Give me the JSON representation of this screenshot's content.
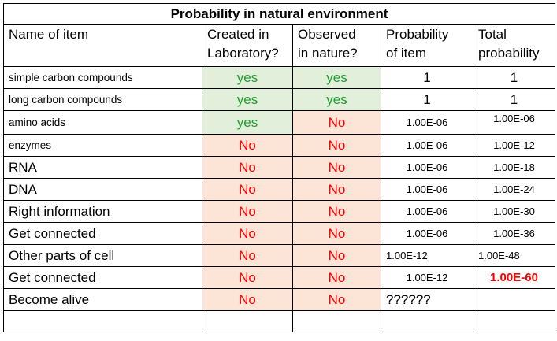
{
  "title": "Probability in natural environment",
  "headers": {
    "name": "Name of item",
    "created_line1": "Created in",
    "created_line2": "Laboratory?",
    "observed_line1": "Observed",
    "observed_line2": "in nature?",
    "prob_line1": "Probability",
    "prob_line2": "of item",
    "total_line1": "Total",
    "total_line2": "probability"
  },
  "rows": [
    {
      "name": "simple carbon compounds",
      "created": "yes",
      "observed": "yes",
      "prob": "1",
      "total": "1"
    },
    {
      "name": "long carbon compounds",
      "created": "yes",
      "observed": "yes",
      "prob": "1",
      "total": "1"
    },
    {
      "name": "amino acids",
      "created": "yes",
      "observed": "No",
      "prob": "1.00E-06",
      "total": "1.00E-06"
    },
    {
      "name": "enzymes",
      "created": "No",
      "observed": "No",
      "prob": "1.00E-06",
      "total": "1.00E-12"
    },
    {
      "name": "RNA",
      "created": "No",
      "observed": "No",
      "prob": "1.00E-06",
      "total": "1.00E-18"
    },
    {
      "name": "DNA",
      "created": "No",
      "observed": "No",
      "prob": "1.00E-06",
      "total": "1.00E-24"
    },
    {
      "name": "Right information",
      "created": "No",
      "observed": "No",
      "prob": "1.00E-06",
      "total": "1.00E-30"
    },
    {
      "name": "Get connected",
      "created": "No",
      "observed": "No",
      "prob": "1.00E-06",
      "total": "1.00E-36"
    },
    {
      "name": "Other parts of cell",
      "created": "No",
      "observed": "No",
      "prob": "1.00E-12",
      "total": "1.00E-48"
    },
    {
      "name": "Get connected",
      "created": "No",
      "observed": "No",
      "prob": "1.00E-12",
      "total": "1.00E-60"
    },
    {
      "name": "Become alive",
      "created": "No",
      "observed": "No",
      "prob": "??????",
      "total": ""
    }
  ],
  "colors": {
    "yes_fill": "#e2efda",
    "yes_text": "#1f9e2f",
    "no_fill": "#fce4d6",
    "no_text": "#ff0000"
  }
}
